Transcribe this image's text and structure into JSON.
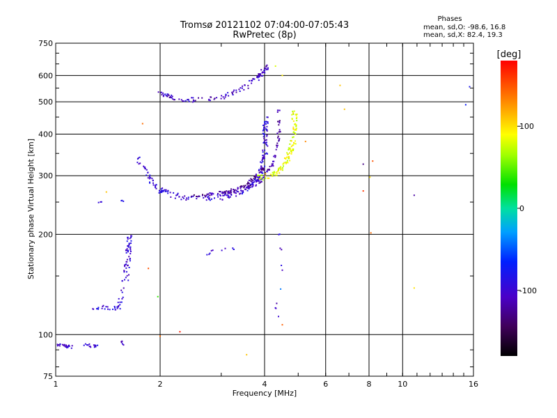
{
  "chart_data": {
    "type": "scatter",
    "title": "Tromsø 20121102 07:04:00-07:05:43",
    "subtitle": "RwPretec (8p)",
    "xlabel": "Frequency [MHz]",
    "ylabel": "Stationary phase Virtual Height [km]",
    "xscale": "log",
    "yscale": "log",
    "xlim": [
      1,
      16
    ],
    "ylim": [
      75,
      750
    ],
    "xticks": [
      {
        "value": 1,
        "label": "1"
      },
      {
        "value": 2,
        "label": "2"
      },
      {
        "value": 4,
        "label": "4"
      },
      {
        "value": 6,
        "label": "6"
      },
      {
        "value": 8,
        "label": "8"
      },
      {
        "value": 10,
        "label": "10"
      },
      {
        "value": 16,
        "label": "16"
      }
    ],
    "yticks": [
      {
        "value": 75,
        "label": "75"
      },
      {
        "value": 100,
        "label": "100"
      },
      {
        "value": 200,
        "label": "200"
      },
      {
        "value": 300,
        "label": "300"
      },
      {
        "value": 400,
        "label": "400"
      },
      {
        "value": 500,
        "label": "500"
      },
      {
        "value": 600,
        "label": "600"
      },
      {
        "value": 750,
        "label": "750"
      }
    ],
    "grid": true,
    "stats": {
      "header": "Phases",
      "line_o": "mean, sd,O: -98.6, 16.8",
      "line_x": "mean, sd,X:  82.4, 19.3"
    },
    "colorbar": {
      "label": "[deg]",
      "range": [
        -180,
        180
      ],
      "ticks": [
        {
          "value": 100,
          "label": "100"
        },
        {
          "value": 0,
          "label": "0"
        },
        {
          "value": -100,
          "label": "-100"
        }
      ]
    },
    "traces": [
      {
        "x": [
          1.0,
          1.12
        ],
        "y": [
          93,
          92
        ],
        "n": 22,
        "phase": -100,
        "spread": 0.012
      },
      {
        "x": [
          1.2,
          1.36
        ],
        "y": [
          93,
          92
        ],
        "n": 16,
        "phase": -102,
        "spread": 0.01
      },
      {
        "x": [
          1.55,
          1.57
        ],
        "y": [
          96,
          92
        ],
        "n": 5,
        "phase": -105,
        "spread": 0.005
      },
      {
        "x": [
          1.28,
          1.52,
          1.6,
          1.62,
          1.64
        ],
        "y": [
          120,
          120,
          150,
          180,
          198
        ],
        "n": 90,
        "phase": -98,
        "spread": 0.018
      },
      {
        "x": [
          1.32,
          1.36
        ],
        "y": [
          250,
          250
        ],
        "n": 3,
        "phase": -100,
        "spread": 0.004
      },
      {
        "x": [
          1.53,
          1.57
        ],
        "y": [
          252,
          252
        ],
        "n": 3,
        "phase": -100,
        "spread": 0.004
      },
      {
        "x": [
          1.73,
          1.95,
          2.3,
          3.0,
          3.6,
          3.9,
          4.02,
          4.02
        ],
        "y": [
          340,
          275,
          257,
          258,
          273,
          300,
          360,
          450
        ],
        "n": 240,
        "phase": -96,
        "spread": 0.018
      },
      {
        "x": [
          2.4,
          3.0,
          3.5,
          3.8,
          4.0
        ],
        "y": [
          260,
          265,
          280,
          300,
          320
        ],
        "n": 70,
        "phase": -125,
        "spread": 0.008
      },
      {
        "x": [
          2.8,
          3.4,
          3.9,
          4.25,
          4.4,
          4.4
        ],
        "y": [
          265,
          270,
          290,
          330,
          400,
          480
        ],
        "n": 90,
        "phase": -118,
        "spread": 0.01
      },
      {
        "x": [
          1.95,
          2.3,
          2.9,
          3.4,
          3.8,
          4.1
        ],
        "y": [
          530,
          505,
          510,
          540,
          590,
          640
        ],
        "n": 120,
        "phase": -106,
        "spread": 0.016
      },
      {
        "x": [
          3.85,
          4.3,
          4.6,
          4.82,
          4.88,
          4.88
        ],
        "y": [
          295,
          305,
          330,
          370,
          410,
          470
        ],
        "n": 120,
        "phase": 85,
        "spread": 0.018
      },
      {
        "x": [
          2.7,
          2.8,
          3.0,
          3.2,
          3.3
        ],
        "y": [
          172,
          178,
          180,
          180,
          182
        ],
        "n": 10,
        "phase": -100,
        "spread": 0.008
      },
      {
        "x": [
          4.4,
          4.45,
          4.5
        ],
        "y": [
          210,
          180,
          155
        ],
        "n": 6,
        "phase": -100,
        "spread": 0.01
      },
      {
        "x": [
          4.3,
          4.35,
          4.4
        ],
        "y": [
          125,
          115,
          108
        ],
        "n": 4,
        "phase": -100,
        "spread": 0.008
      }
    ],
    "points": [
      {
        "x": 1.4,
        "y": 268,
        "phase": 110
      },
      {
        "x": 1.78,
        "y": 430,
        "phase": 140
      },
      {
        "x": 1.85,
        "y": 158,
        "phase": 150
      },
      {
        "x": 1.97,
        "y": 130,
        "phase": 40
      },
      {
        "x": 2.0,
        "y": 99,
        "phase": 140
      },
      {
        "x": 2.28,
        "y": 102,
        "phase": 170
      },
      {
        "x": 3.55,
        "y": 87,
        "phase": 110
      },
      {
        "x": 4.5,
        "y": 107,
        "phase": 145
      },
      {
        "x": 4.45,
        "y": 137,
        "phase": -40
      },
      {
        "x": 4.5,
        "y": 600,
        "phase": 95
      },
      {
        "x": 4.3,
        "y": 640,
        "phase": 80
      },
      {
        "x": 5.25,
        "y": 380,
        "phase": 130
      },
      {
        "x": 6.6,
        "y": 560,
        "phase": 110
      },
      {
        "x": 6.8,
        "y": 475,
        "phase": 110
      },
      {
        "x": 7.7,
        "y": 325,
        "phase": -130
      },
      {
        "x": 7.7,
        "y": 270,
        "phase": 160
      },
      {
        "x": 8.05,
        "y": 297,
        "phase": 100
      },
      {
        "x": 8.2,
        "y": 332,
        "phase": 150
      },
      {
        "x": 8.1,
        "y": 202,
        "phase": 140
      },
      {
        "x": 10.8,
        "y": 262,
        "phase": -120
      },
      {
        "x": 10.8,
        "y": 138,
        "phase": 100
      },
      {
        "x": 15.2,
        "y": 490,
        "phase": -70
      },
      {
        "x": 15.6,
        "y": 555,
        "phase": -80
      }
    ]
  }
}
